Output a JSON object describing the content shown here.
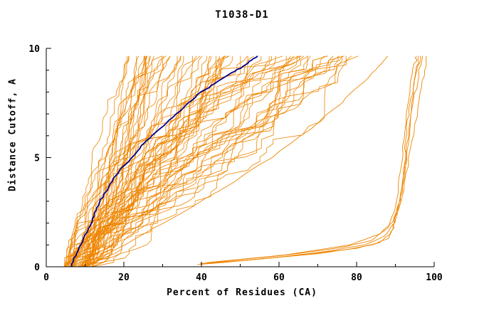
{
  "title": "T1038-D1",
  "chart_data": {
    "type": "line",
    "title": "T1038-D1",
    "xlabel": "Percent of Residues (CA)",
    "ylabel": "Distance Cutoff, A",
    "xlim": [
      0,
      100
    ],
    "ylim": [
      0,
      10
    ],
    "x_major_ticks": [
      0,
      20,
      40,
      60,
      80,
      100
    ],
    "x_minor_ticks": [
      10,
      30,
      50,
      70,
      90
    ],
    "y_major_ticks": [
      0,
      5,
      10
    ],
    "y_minor_ticks": [
      1,
      2,
      3,
      4,
      6,
      7,
      8,
      9
    ],
    "grid": false,
    "legend": "none",
    "y_top": 9.65,
    "colors": {
      "model": "#ee8500",
      "reference": "#00008b",
      "axis": "#000000",
      "background": "#ffffff"
    },
    "ensemble": {
      "description": "bundle of predicted-model cumulative GDT curves (orange)",
      "count": 72,
      "seed": 1337,
      "steps": 48,
      "x_start_range": [
        4.5,
        12
      ],
      "x_end_range": [
        20,
        83
      ],
      "flat_step_prob": 0.25
    },
    "reference_curve": {
      "label": "highlighted model",
      "points": [
        [
          6.5,
          0
        ],
        [
          7.5,
          0.5
        ],
        [
          9,
          1
        ],
        [
          10.5,
          1.6
        ],
        [
          12,
          2.2
        ],
        [
          13,
          2.7
        ],
        [
          14.5,
          3.2
        ],
        [
          16.5,
          3.8
        ],
        [
          18.5,
          4.3
        ],
        [
          21,
          4.8
        ],
        [
          23.5,
          5.3
        ],
        [
          26,
          5.8
        ],
        [
          28.5,
          6.2
        ],
        [
          31,
          6.6
        ],
        [
          33.5,
          7.0
        ],
        [
          36.5,
          7.5
        ],
        [
          40,
          8.0
        ],
        [
          43.5,
          8.4
        ],
        [
          47,
          8.8
        ],
        [
          50,
          9.1
        ],
        [
          52.5,
          9.4
        ],
        [
          54.5,
          9.65
        ]
      ]
    },
    "outlier_curves": [
      [
        [
          40,
          0.15
        ],
        [
          55,
          0.35
        ],
        [
          70,
          0.6
        ],
        [
          80,
          0.85
        ],
        [
          86,
          1.1
        ],
        [
          89,
          1.6
        ],
        [
          90.5,
          2.3
        ],
        [
          91.5,
          3.2
        ],
        [
          92,
          4.2
        ],
        [
          92.5,
          5.2
        ],
        [
          93,
          6.2
        ],
        [
          93.5,
          7.2
        ],
        [
          94.5,
          8.2
        ],
        [
          95.5,
          9.0
        ],
        [
          96,
          9.65
        ]
      ],
      [
        [
          40,
          0.12
        ],
        [
          58,
          0.4
        ],
        [
          72,
          0.7
        ],
        [
          82,
          1.0
        ],
        [
          87,
          1.4
        ],
        [
          89.5,
          2.0
        ],
        [
          91,
          3.0
        ],
        [
          92.5,
          4.5
        ],
        [
          93.5,
          6.0
        ],
        [
          94.5,
          7.5
        ],
        [
          96,
          8.8
        ],
        [
          97,
          9.65
        ]
      ],
      [
        [
          41,
          0.18
        ],
        [
          60,
          0.5
        ],
        [
          75,
          0.85
        ],
        [
          84,
          1.2
        ],
        [
          88,
          1.8
        ],
        [
          90,
          2.8
        ],
        [
          91,
          4.0
        ],
        [
          92,
          5.5
        ],
        [
          93,
          7.0
        ],
        [
          94,
          8.3
        ],
        [
          95,
          9.3
        ],
        [
          95.5,
          9.65
        ]
      ],
      [
        [
          42,
          0.2
        ],
        [
          62,
          0.55
        ],
        [
          78,
          1.0
        ],
        [
          86,
          1.5
        ],
        [
          90,
          2.2
        ],
        [
          92,
          3.5
        ],
        [
          93.5,
          5.0
        ],
        [
          95,
          6.5
        ],
        [
          96.5,
          8.0
        ],
        [
          97.5,
          9.0
        ],
        [
          98,
          9.65
        ]
      ],
      [
        [
          39,
          0.1
        ],
        [
          52,
          0.3
        ],
        [
          66,
          0.55
        ],
        [
          78,
          0.8
        ],
        [
          85,
          1.05
        ],
        [
          88,
          1.3
        ],
        [
          89.5,
          1.9
        ],
        [
          90.5,
          2.6
        ],
        [
          91.5,
          3.6
        ],
        [
          92.5,
          4.8
        ],
        [
          93.5,
          6.3
        ],
        [
          94.5,
          7.8
        ],
        [
          95.5,
          9.0
        ],
        [
          96.5,
          9.65
        ]
      ],
      [
        [
          12,
          0.2
        ],
        [
          20,
          1.0
        ],
        [
          30,
          2.0
        ],
        [
          45,
          3.5
        ],
        [
          58,
          5.0
        ],
        [
          68,
          6.3
        ],
        [
          76,
          7.5
        ],
        [
          82,
          8.5
        ],
        [
          86,
          9.2
        ],
        [
          88,
          9.65
        ]
      ]
    ]
  }
}
